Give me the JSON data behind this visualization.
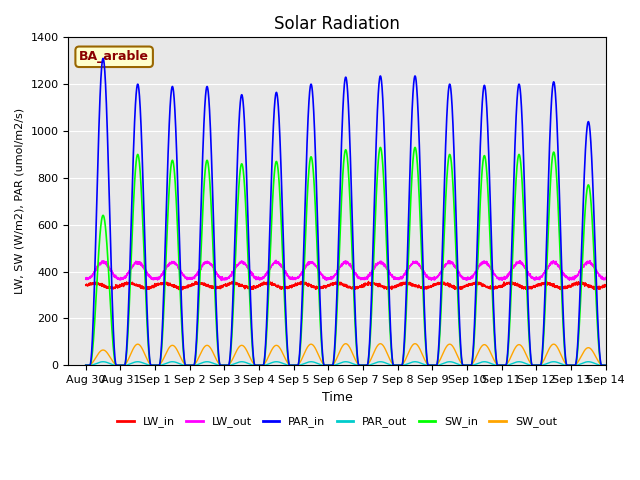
{
  "title": "Solar Radiation",
  "xlabel": "Time",
  "ylabel": "LW, SW (W/m2), PAR (umol/m2/s)",
  "ylim": [
    0,
    1400
  ],
  "xlim_start": -0.5,
  "xlim_end": 14.5,
  "annotation_text": "BA_arable",
  "annotation_bg": "#ffffcc",
  "annotation_border": "#996600",
  "legend_entries": [
    "LW_in",
    "LW_out",
    "PAR_in",
    "PAR_out",
    "SW_in",
    "SW_out"
  ],
  "legend_colors": [
    "#ff0000",
    "#ff00ff",
    "#0000ff",
    "#00cccc",
    "#00ff00",
    "#ffa500"
  ],
  "xtick_labels": [
    "Aug 30",
    "Aug 31",
    "Sep 1",
    "Sep 2",
    "Sep 3",
    "Sep 4",
    "Sep 5",
    "Sep 6",
    "Sep 7",
    "Sep 8",
    "Sep 9",
    "Sep 10",
    "Sep 11",
    "Sep 12",
    "Sep 13",
    "Sep 14"
  ],
  "xtick_positions": [
    0,
    1,
    2,
    3,
    4,
    5,
    6,
    7,
    8,
    9,
    10,
    11,
    12,
    13,
    14,
    15
  ],
  "n_days": 16,
  "par_peak_vals": [
    1310,
    1200,
    1190,
    1190,
    1155,
    1165,
    1200,
    1230,
    1235,
    1235,
    1200,
    1195,
    1200,
    1210,
    1040,
    0
  ],
  "sw_peak_vals": [
    640,
    900,
    875,
    875,
    860,
    870,
    890,
    920,
    930,
    930,
    900,
    895,
    900,
    910,
    770,
    0
  ],
  "sw_out_peak_vals": [
    65,
    90,
    85,
    85,
    85,
    85,
    90,
    92,
    92,
    92,
    90,
    88,
    88,
    90,
    75,
    0
  ],
  "ytick_vals": [
    0,
    200,
    400,
    600,
    800,
    1000,
    1200,
    1400
  ]
}
